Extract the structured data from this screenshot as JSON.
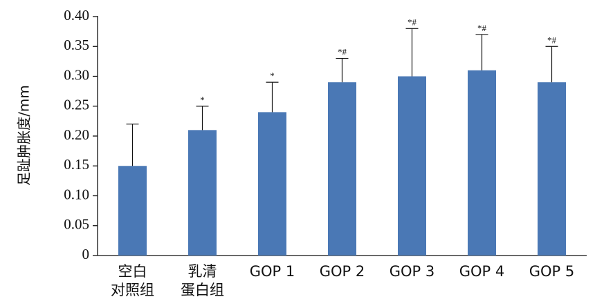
{
  "chart_data": {
    "type": "bar",
    "ylabel": "足趾肿胀度/mm",
    "ylim": [
      0,
      0.4
    ],
    "yticks": [
      "0",
      "0.05",
      "0.10",
      "0.15",
      "0.20",
      "0.25",
      "0.30",
      "0.35",
      "0.40"
    ],
    "yticks_values": [
      0,
      0.05,
      0.1,
      0.15,
      0.2,
      0.25,
      0.3,
      0.35,
      0.4
    ],
    "grid": false,
    "bar_color": "#4a78b5",
    "categories": [
      [
        "空白",
        "对照组"
      ],
      [
        "乳清",
        "蛋白组"
      ],
      [
        "GOP 1"
      ],
      [
        "GOP 2"
      ],
      [
        "GOP 3"
      ],
      [
        "GOP 4"
      ],
      [
        "GOP 5"
      ]
    ],
    "values": [
      0.15,
      0.21,
      0.24,
      0.29,
      0.3,
      0.31,
      0.29
    ],
    "error_upper": [
      0.07,
      0.04,
      0.05,
      0.04,
      0.08,
      0.06,
      0.06
    ],
    "significance": [
      "",
      "*",
      "*",
      "*#",
      "*#",
      "*#",
      "*#"
    ]
  }
}
